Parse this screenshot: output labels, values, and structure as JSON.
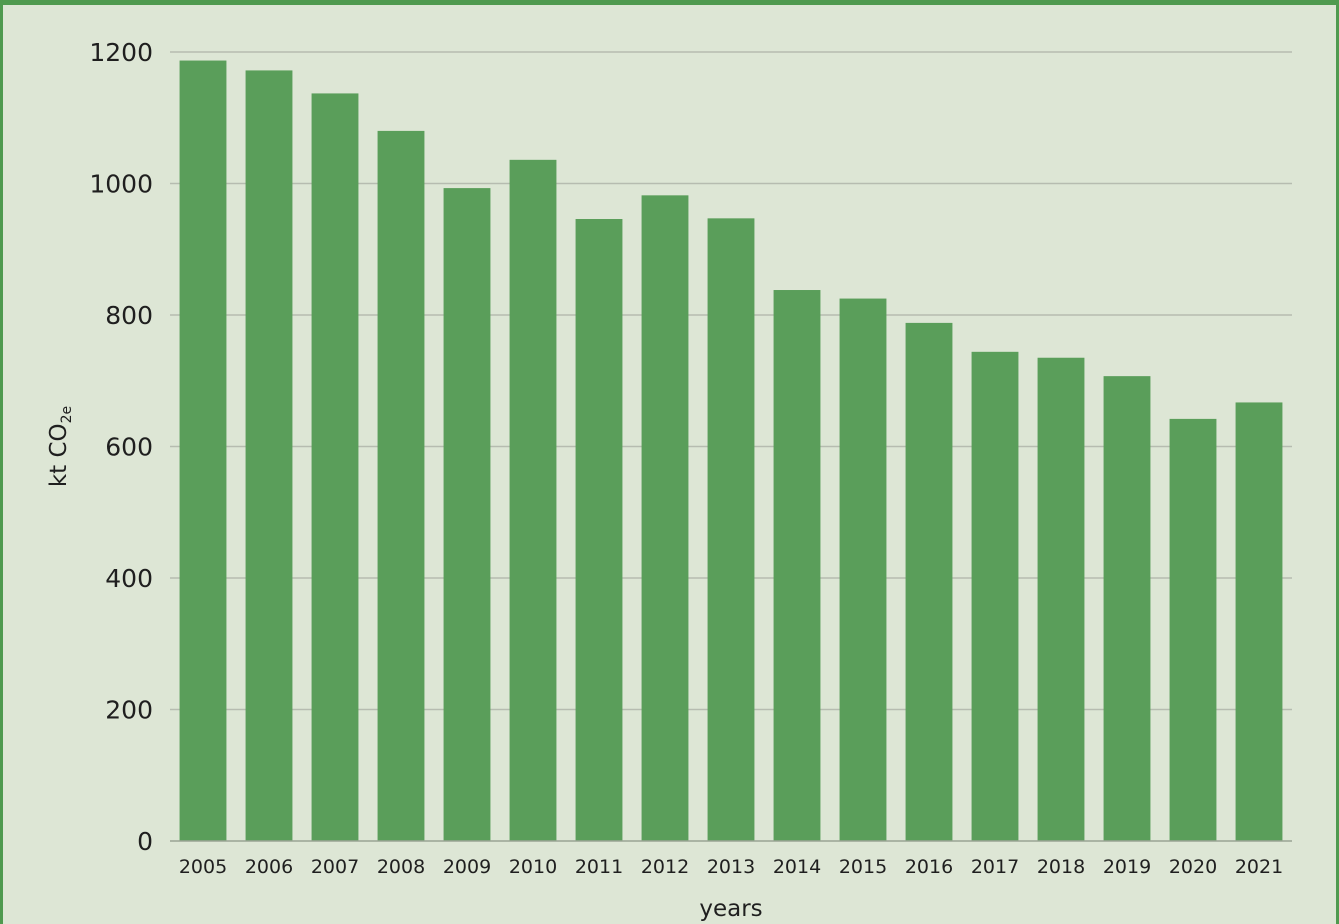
{
  "chart_data": {
    "type": "bar",
    "categories": [
      "2005",
      "2006",
      "2007",
      "2008",
      "2009",
      "2010",
      "2011",
      "2012",
      "2013",
      "2014",
      "2015",
      "2016",
      "2017",
      "2018",
      "2019",
      "2020",
      "2021"
    ],
    "values": [
      1187,
      1172,
      1137,
      1080,
      993,
      1036,
      946,
      982,
      947,
      838,
      825,
      788,
      744,
      735,
      707,
      642,
      667
    ],
    "title": "",
    "xlabel": "years",
    "ylabel": "kt CO",
    "ylabel_subscript": "2e",
    "ylim": [
      0,
      1200
    ],
    "yticks": [
      0,
      200,
      400,
      600,
      800,
      1000,
      1200
    ],
    "grid": true,
    "colors": {
      "bar": "#5a9e5a",
      "background": "#dde6d5",
      "grid": "#b6bcb0",
      "frame": "#4f9a4f"
    }
  }
}
